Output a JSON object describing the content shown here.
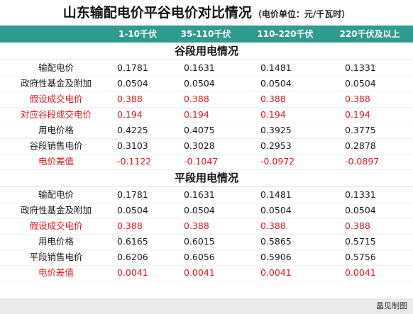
{
  "title": {
    "main": "山东输配电价平谷电价对比情况",
    "sub": "（电价单位：元/千瓦时）"
  },
  "header": {
    "columns": [
      "1-10千伏",
      "35-110千伏",
      "110-220千伏",
      "220千伏及以上"
    ],
    "background_color": "#2f9b8f"
  },
  "sections": [
    {
      "title": "谷段用电情况",
      "rows": [
        {
          "label": "输配电价",
          "values": [
            "0.1781",
            "0.1631",
            "0.1481",
            "0.1331"
          ],
          "color": "black"
        },
        {
          "label": "政府性基金及附加",
          "values": [
            "0.0504",
            "0.0504",
            "0.0504",
            "0.0504"
          ],
          "color": "black"
        },
        {
          "label": "假设成交电价",
          "values": [
            "0.388",
            "0.388",
            "0.388",
            "0.388"
          ],
          "color": "red"
        },
        {
          "label": "对应谷段成交电价",
          "values": [
            "0.194",
            "0.194",
            "0.194",
            "0.194"
          ],
          "color": "red"
        },
        {
          "label": "用电价格",
          "values": [
            "0.4225",
            "0.4075",
            "0.3925",
            "0.3775"
          ],
          "color": "black"
        },
        {
          "label": "谷段销售电价",
          "values": [
            "0.3103",
            "0.3028",
            "0.2953",
            "0.2878"
          ],
          "color": "black"
        },
        {
          "label": "电价差值",
          "values": [
            "-0.1122",
            "-0.1047",
            "-0.0972",
            "-0.0897"
          ],
          "color": "red"
        }
      ]
    },
    {
      "title": "平段用电情况",
      "rows": [
        {
          "label": "输配电价",
          "values": [
            "0.1781",
            "0.1631",
            "0.1481",
            "0.1331"
          ],
          "color": "black"
        },
        {
          "label": "政府性基金及附加",
          "values": [
            "0.0504",
            "0.0504",
            "0.0504",
            "0.0504"
          ],
          "color": "black"
        },
        {
          "label": "假设成交电价",
          "values": [
            "0.388",
            "0.388",
            "0.388",
            "0.388"
          ],
          "color": "red"
        },
        {
          "label": "用电价格",
          "values": [
            "0.6165",
            "0.6015",
            "0.5865",
            "0.5715"
          ],
          "color": "black"
        },
        {
          "label": "平段销售电价",
          "values": [
            "0.6206",
            "0.6056",
            "0.5906",
            "0.5756"
          ],
          "color": "black"
        },
        {
          "label": "电价差值",
          "values": [
            "0.0041",
            "0.0041",
            "0.0041",
            "0.0041"
          ],
          "color": "red"
        }
      ]
    }
  ],
  "footer": {
    "credit": "晶见制图"
  },
  "colors": {
    "header_bg": "#2f9b8f",
    "red_text": "#e0171f",
    "black_text": "#1a1a1a",
    "footer_bg": "#eaeaea"
  }
}
